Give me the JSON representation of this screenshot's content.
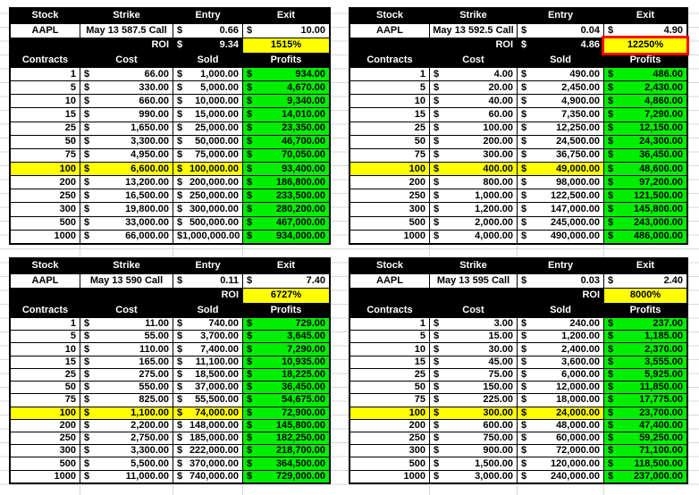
{
  "sheet": {
    "colors": {
      "profit_green": "#00EE00",
      "highlight_yellow": "#FFFF00",
      "callout_red": "#FF0000",
      "header_black": "#000000"
    }
  },
  "tables": [
    {
      "id": "top-left",
      "head_labels": [
        "Stock",
        "Strike",
        "Entry",
        "Exit"
      ],
      "stock": "AAPL",
      "strike": "May 13 587.5 Call",
      "entry_currency": "$",
      "entry": "0.66",
      "exit_currency": "$",
      "exit": "10.00",
      "roi_label": "ROI",
      "roi_currency": "$",
      "roi_value": "9.34",
      "roi_percent": "1515%",
      "roi_highlighted": false,
      "col_labels": [
        "Contracts",
        "Cost",
        "Sold",
        "Profits"
      ],
      "currency": "$",
      "rows": [
        {
          "contracts": "1",
          "cost": "66.00",
          "sold": "1,000.00",
          "profits": "934.00",
          "highlight": false
        },
        {
          "contracts": "5",
          "cost": "330.00",
          "sold": "5,000.00",
          "profits": "4,670.00",
          "highlight": false
        },
        {
          "contracts": "10",
          "cost": "660.00",
          "sold": "10,000.00",
          "profits": "9,340.00",
          "highlight": false
        },
        {
          "contracts": "15",
          "cost": "990.00",
          "sold": "15,000.00",
          "profits": "14,010.00",
          "highlight": false
        },
        {
          "contracts": "25",
          "cost": "1,650.00",
          "sold": "25,000.00",
          "profits": "23,350.00",
          "highlight": false
        },
        {
          "contracts": "50",
          "cost": "3,300.00",
          "sold": "50,000.00",
          "profits": "46,700.00",
          "highlight": false
        },
        {
          "contracts": "75",
          "cost": "4,950.00",
          "sold": "75,000.00",
          "profits": "70,050.00",
          "highlight": false
        },
        {
          "contracts": "100",
          "cost": "6,600.00",
          "sold": "100,000.00",
          "profits": "93,400.00",
          "highlight": true
        },
        {
          "contracts": "200",
          "cost": "13,200.00",
          "sold": "200,000.00",
          "profits": "186,800.00",
          "highlight": false
        },
        {
          "contracts": "250",
          "cost": "16,500.00",
          "sold": "250,000.00",
          "profits": "233,500.00",
          "highlight": false
        },
        {
          "contracts": "300",
          "cost": "19,800.00",
          "sold": "300,000.00",
          "profits": "280,200.00",
          "highlight": false
        },
        {
          "contracts": "500",
          "cost": "33,000.00",
          "sold": "500,000.00",
          "profits": "467,000.00",
          "highlight": false
        },
        {
          "contracts": "1000",
          "cost": "66,000.00",
          "sold": "1,000,000.00",
          "profits": "934,000.00",
          "highlight": false
        }
      ]
    },
    {
      "id": "top-right",
      "head_labels": [
        "Stock",
        "Strike",
        "Entry",
        "Exit"
      ],
      "stock": "AAPL",
      "strike": "May 13 592.5 Call",
      "entry_currency": "$",
      "entry": "0.04",
      "exit_currency": "$",
      "exit": "4.90",
      "roi_label": "ROI",
      "roi_currency": "$",
      "roi_value": "4.86",
      "roi_percent": "12250%",
      "roi_highlighted": true,
      "col_labels": [
        "Contracts",
        "Cost",
        "Sold",
        "Profits"
      ],
      "currency": "$",
      "rows": [
        {
          "contracts": "1",
          "cost": "4.00",
          "sold": "490.00",
          "profits": "486.00",
          "highlight": false
        },
        {
          "contracts": "5",
          "cost": "20.00",
          "sold": "2,450.00",
          "profits": "2,430.00",
          "highlight": false
        },
        {
          "contracts": "10",
          "cost": "40.00",
          "sold": "4,900.00",
          "profits": "4,860.00",
          "highlight": false
        },
        {
          "contracts": "15",
          "cost": "60.00",
          "sold": "7,350.00",
          "profits": "7,290.00",
          "highlight": false
        },
        {
          "contracts": "25",
          "cost": "100.00",
          "sold": "12,250.00",
          "profits": "12,150.00",
          "highlight": false
        },
        {
          "contracts": "50",
          "cost": "200.00",
          "sold": "24,500.00",
          "profits": "24,300.00",
          "highlight": false
        },
        {
          "contracts": "75",
          "cost": "300.00",
          "sold": "36,750.00",
          "profits": "36,450.00",
          "highlight": false
        },
        {
          "contracts": "100",
          "cost": "400.00",
          "sold": "49,000.00",
          "profits": "48,600.00",
          "highlight": true
        },
        {
          "contracts": "200",
          "cost": "800.00",
          "sold": "98,000.00",
          "profits": "97,200.00",
          "highlight": false
        },
        {
          "contracts": "250",
          "cost": "1,000.00",
          "sold": "122,500.00",
          "profits": "121,500.00",
          "highlight": false
        },
        {
          "contracts": "300",
          "cost": "1,200.00",
          "sold": "147,000.00",
          "profits": "145,800.00",
          "highlight": false
        },
        {
          "contracts": "500",
          "cost": "2,000.00",
          "sold": "245,000.00",
          "profits": "243,000.00",
          "highlight": false
        },
        {
          "contracts": "1000",
          "cost": "4,000.00",
          "sold": "490,000.00",
          "profits": "486,000.00",
          "highlight": false
        }
      ]
    },
    {
      "id": "bottom-left",
      "head_labels": [
        "Stock",
        "Strike",
        "Entry",
        "Exit"
      ],
      "stock": "AAPL",
      "strike": "May 13 590 Call",
      "entry_currency": "$",
      "entry": "0.11",
      "exit_currency": "$",
      "exit": "7.40",
      "roi_label": "ROI",
      "roi_percent": "6727%",
      "roi_highlighted": false,
      "col_labels": [
        "Contracts",
        "Cost",
        "Sold",
        "Profits"
      ],
      "currency": "$",
      "rows": [
        {
          "contracts": "1",
          "cost": "11.00",
          "sold": "740.00",
          "profits": "729.00",
          "highlight": false
        },
        {
          "contracts": "5",
          "cost": "55.00",
          "sold": "3,700.00",
          "profits": "3,645.00",
          "highlight": false
        },
        {
          "contracts": "10",
          "cost": "110.00",
          "sold": "7,400.00",
          "profits": "7,290.00",
          "highlight": false
        },
        {
          "contracts": "15",
          "cost": "165.00",
          "sold": "11,100.00",
          "profits": "10,935.00",
          "highlight": false
        },
        {
          "contracts": "25",
          "cost": "275.00",
          "sold": "18,500.00",
          "profits": "18,225.00",
          "highlight": false
        },
        {
          "contracts": "50",
          "cost": "550.00",
          "sold": "37,000.00",
          "profits": "36,450.00",
          "highlight": false
        },
        {
          "contracts": "75",
          "cost": "825.00",
          "sold": "55,500.00",
          "profits": "54,675.00",
          "highlight": false
        },
        {
          "contracts": "100",
          "cost": "1,100.00",
          "sold": "74,000.00",
          "profits": "72,900.00",
          "highlight": true
        },
        {
          "contracts": "200",
          "cost": "2,200.00",
          "sold": "148,000.00",
          "profits": "145,800.00",
          "highlight": false
        },
        {
          "contracts": "250",
          "cost": "2,750.00",
          "sold": "185,000.00",
          "profits": "182,250.00",
          "highlight": false
        },
        {
          "contracts": "300",
          "cost": "3,300.00",
          "sold": "222,000.00",
          "profits": "218,700.00",
          "highlight": false
        },
        {
          "contracts": "500",
          "cost": "5,500.00",
          "sold": "370,000.00",
          "profits": "364,500.00",
          "highlight": false
        },
        {
          "contracts": "1000",
          "cost": "11,000.00",
          "sold": "740,000.00",
          "profits": "729,000.00",
          "highlight": false
        }
      ]
    },
    {
      "id": "bottom-right",
      "head_labels": [
        "Stock",
        "Strike",
        "Entry",
        "Exit"
      ],
      "stock": "AAPL",
      "strike": "May 13 595 Call",
      "entry_currency": "$",
      "entry": "0.03",
      "exit_currency": "$",
      "exit": "2.40",
      "roi_label": "ROI",
      "roi_percent": "8000%",
      "roi_highlighted": false,
      "col_labels": [
        "Contracts",
        "Cost",
        "Sold",
        "Profits"
      ],
      "currency": "$",
      "rows": [
        {
          "contracts": "1",
          "cost": "3.00",
          "sold": "240.00",
          "profits": "237.00",
          "highlight": false
        },
        {
          "contracts": "5",
          "cost": "15.00",
          "sold": "1,200.00",
          "profits": "1,185.00",
          "highlight": false
        },
        {
          "contracts": "10",
          "cost": "30.00",
          "sold": "2,400.00",
          "profits": "2,370.00",
          "highlight": false
        },
        {
          "contracts": "15",
          "cost": "45.00",
          "sold": "3,600.00",
          "profits": "3,555.00",
          "highlight": false
        },
        {
          "contracts": "25",
          "cost": "75.00",
          "sold": "6,000.00",
          "profits": "5,925.00",
          "highlight": false
        },
        {
          "contracts": "50",
          "cost": "150.00",
          "sold": "12,000.00",
          "profits": "11,850.00",
          "highlight": false
        },
        {
          "contracts": "75",
          "cost": "225.00",
          "sold": "18,000.00",
          "profits": "17,775.00",
          "highlight": false
        },
        {
          "contracts": "100",
          "cost": "300.00",
          "sold": "24,000.00",
          "profits": "23,700.00",
          "highlight": true
        },
        {
          "contracts": "200",
          "cost": "600.00",
          "sold": "48,000.00",
          "profits": "47,400.00",
          "highlight": false
        },
        {
          "contracts": "250",
          "cost": "750.00",
          "sold": "60,000.00",
          "profits": "59,250.00",
          "highlight": false
        },
        {
          "contracts": "300",
          "cost": "900.00",
          "sold": "72,000.00",
          "profits": "71,100.00",
          "highlight": false
        },
        {
          "contracts": "500",
          "cost": "1,500.00",
          "sold": "120,000.00",
          "profits": "118,500.00",
          "highlight": false
        },
        {
          "contracts": "1000",
          "cost": "3,000.00",
          "sold": "240,000.00",
          "profits": "237,000.00",
          "highlight": false
        }
      ]
    }
  ]
}
